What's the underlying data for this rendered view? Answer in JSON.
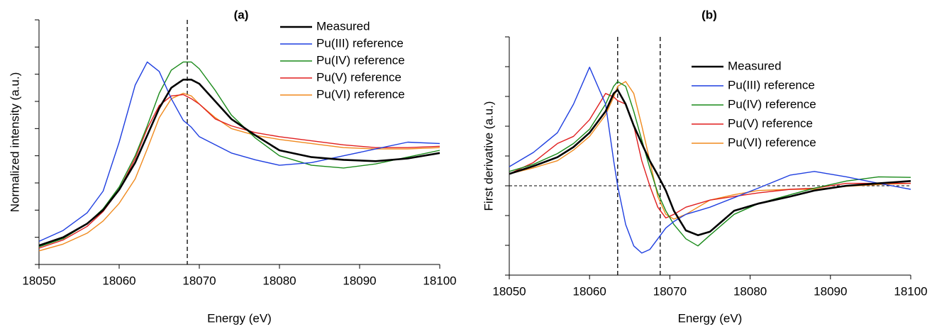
{
  "chart_data": [
    {
      "type": "line",
      "title": "(a)",
      "x_label": "Energy (eV)",
      "y_label": "Normalized intensity (a.u.)",
      "x": [
        18050,
        18053,
        18056,
        18058,
        18060,
        18062,
        18063.5,
        18065,
        18066.5,
        18068,
        18069,
        18070,
        18072,
        18074,
        18077,
        18080,
        18084,
        18088,
        18092,
        18096,
        18100
      ],
      "series": [
        {
          "name": "Measured",
          "color": "#000000",
          "values": [
            0.14,
            0.2,
            0.3,
            0.4,
            0.55,
            0.75,
            0.95,
            1.15,
            1.3,
            1.36,
            1.36,
            1.33,
            1.2,
            1.07,
            0.95,
            0.84,
            0.79,
            0.77,
            0.76,
            0.78,
            0.82
          ]
        },
        {
          "name": "Pu(III) reference",
          "color": "#1f3fe0",
          "values": [
            0.17,
            0.25,
            0.38,
            0.54,
            0.9,
            1.32,
            1.49,
            1.42,
            1.22,
            1.06,
            1.01,
            0.94,
            0.88,
            0.82,
            0.77,
            0.73,
            0.75,
            0.8,
            0.85,
            0.9,
            0.89
          ]
        },
        {
          "name": "Pu(IV) reference",
          "color": "#1a8a1a",
          "values": [
            0.13,
            0.19,
            0.3,
            0.41,
            0.57,
            0.8,
            1.02,
            1.26,
            1.43,
            1.49,
            1.49,
            1.44,
            1.28,
            1.1,
            0.93,
            0.8,
            0.73,
            0.71,
            0.74,
            0.79,
            0.84
          ]
        },
        {
          "name": "Pu(V) reference",
          "color": "#e01f1f",
          "values": [
            0.12,
            0.18,
            0.28,
            0.39,
            0.55,
            0.78,
            1.0,
            1.17,
            1.24,
            1.25,
            1.22,
            1.18,
            1.07,
            1.02,
            0.97,
            0.94,
            0.91,
            0.88,
            0.86,
            0.86,
            0.87
          ]
        },
        {
          "name": "Pu(VI) reference",
          "color": "#f08a1e",
          "values": [
            0.1,
            0.15,
            0.23,
            0.32,
            0.45,
            0.63,
            0.85,
            1.08,
            1.22,
            1.26,
            1.24,
            1.18,
            1.08,
            1.0,
            0.95,
            0.92,
            0.89,
            0.86,
            0.85,
            0.85,
            0.86
          ]
        }
      ],
      "xlim": [
        18050,
        18100
      ],
      "xticks": [
        18050,
        18060,
        18070,
        18080,
        18090,
        18100
      ],
      "ylim": [
        0,
        1.8
      ],
      "yticks": [
        0,
        0.2,
        0.4,
        0.6,
        0.8,
        1.0,
        1.2,
        1.4,
        1.6,
        1.8
      ],
      "vlines": [
        18068.5
      ],
      "hlines": [],
      "legend": "upper right"
    },
    {
      "type": "line",
      "title": "(b)",
      "x_label": "Energy (eV)",
      "y_label": "First derivative (a.u.)",
      "x": [
        18050,
        18053,
        18056,
        18058,
        18060,
        18062,
        18063,
        18063.5,
        18064.5,
        18065.5,
        18066.5,
        18067.5,
        18068.5,
        18069.5,
        18070.5,
        18072,
        18073.5,
        18075,
        18078,
        18081,
        18085,
        18088,
        18092,
        18096,
        18100
      ],
      "series": [
        {
          "name": "Measured",
          "color": "#000000",
          "values": [
            0.2,
            0.33,
            0.48,
            0.65,
            0.89,
            1.25,
            1.55,
            1.61,
            1.37,
            1.01,
            0.71,
            0.42,
            0.18,
            -0.08,
            -0.42,
            -0.75,
            -0.83,
            -0.77,
            -0.42,
            -0.3,
            -0.18,
            -0.08,
            0,
            0.04,
            0.08
          ]
        },
        {
          "name": "Pu(III) reference",
          "color": "#1f3fe0",
          "values": [
            0.32,
            0.56,
            0.89,
            1.37,
            1.99,
            1.37,
            0.42,
            0,
            -0.65,
            -1.01,
            -1.13,
            -1.07,
            -0.89,
            -0.71,
            -0.6,
            -0.48,
            -0.42,
            -0.36,
            -0.2,
            -0.04,
            0.18,
            0.24,
            0.15,
            0.04,
            -0.06
          ]
        },
        {
          "name": "Pu(IV) reference",
          "color": "#1a8a1a",
          "values": [
            0.24,
            0.36,
            0.54,
            0.71,
            0.95,
            1.37,
            1.67,
            1.75,
            1.67,
            1.25,
            0.77,
            0.3,
            -0.12,
            -0.42,
            -0.65,
            -0.89,
            -1.01,
            -0.83,
            -0.48,
            -0.3,
            -0.15,
            -0.04,
            0.08,
            0.15,
            0.14
          ]
        },
        {
          "name": "Pu(V) reference",
          "color": "#e01f1f",
          "values": [
            0.2,
            0.39,
            0.71,
            0.83,
            1.11,
            1.55,
            1.49,
            1.43,
            1.37,
            1.01,
            0.42,
            0,
            -0.36,
            -0.54,
            -0.48,
            -0.36,
            -0.3,
            -0.24,
            -0.18,
            -0.12,
            -0.06,
            -0.04,
            0.04,
            0.04,
            0.04
          ]
        },
        {
          "name": "Pu(VI) reference",
          "color": "#f08a1e",
          "values": [
            0.2,
            0.3,
            0.42,
            0.6,
            0.83,
            1.19,
            1.49,
            1.67,
            1.75,
            1.55,
            1.01,
            0.42,
            -0.18,
            -0.48,
            -0.56,
            -0.48,
            -0.36,
            -0.24,
            -0.15,
            -0.08,
            -0.06,
            -0.06,
            -0.01,
            0.02,
            0.04
          ]
        }
      ],
      "xlim": [
        18050,
        18100
      ],
      "xticks": [
        18050,
        18060,
        18070,
        18080,
        18090,
        18100
      ],
      "ylim": [
        -1.5,
        2.5
      ],
      "yticks": [
        -1.5,
        -1.0,
        -0.5,
        0,
        0.5,
        1.0,
        1.5,
        2.0,
        2.5
      ],
      "vlines": [
        18063.5,
        18068.8
      ],
      "hlines": [
        0
      ],
      "legend": "upper right"
    }
  ]
}
